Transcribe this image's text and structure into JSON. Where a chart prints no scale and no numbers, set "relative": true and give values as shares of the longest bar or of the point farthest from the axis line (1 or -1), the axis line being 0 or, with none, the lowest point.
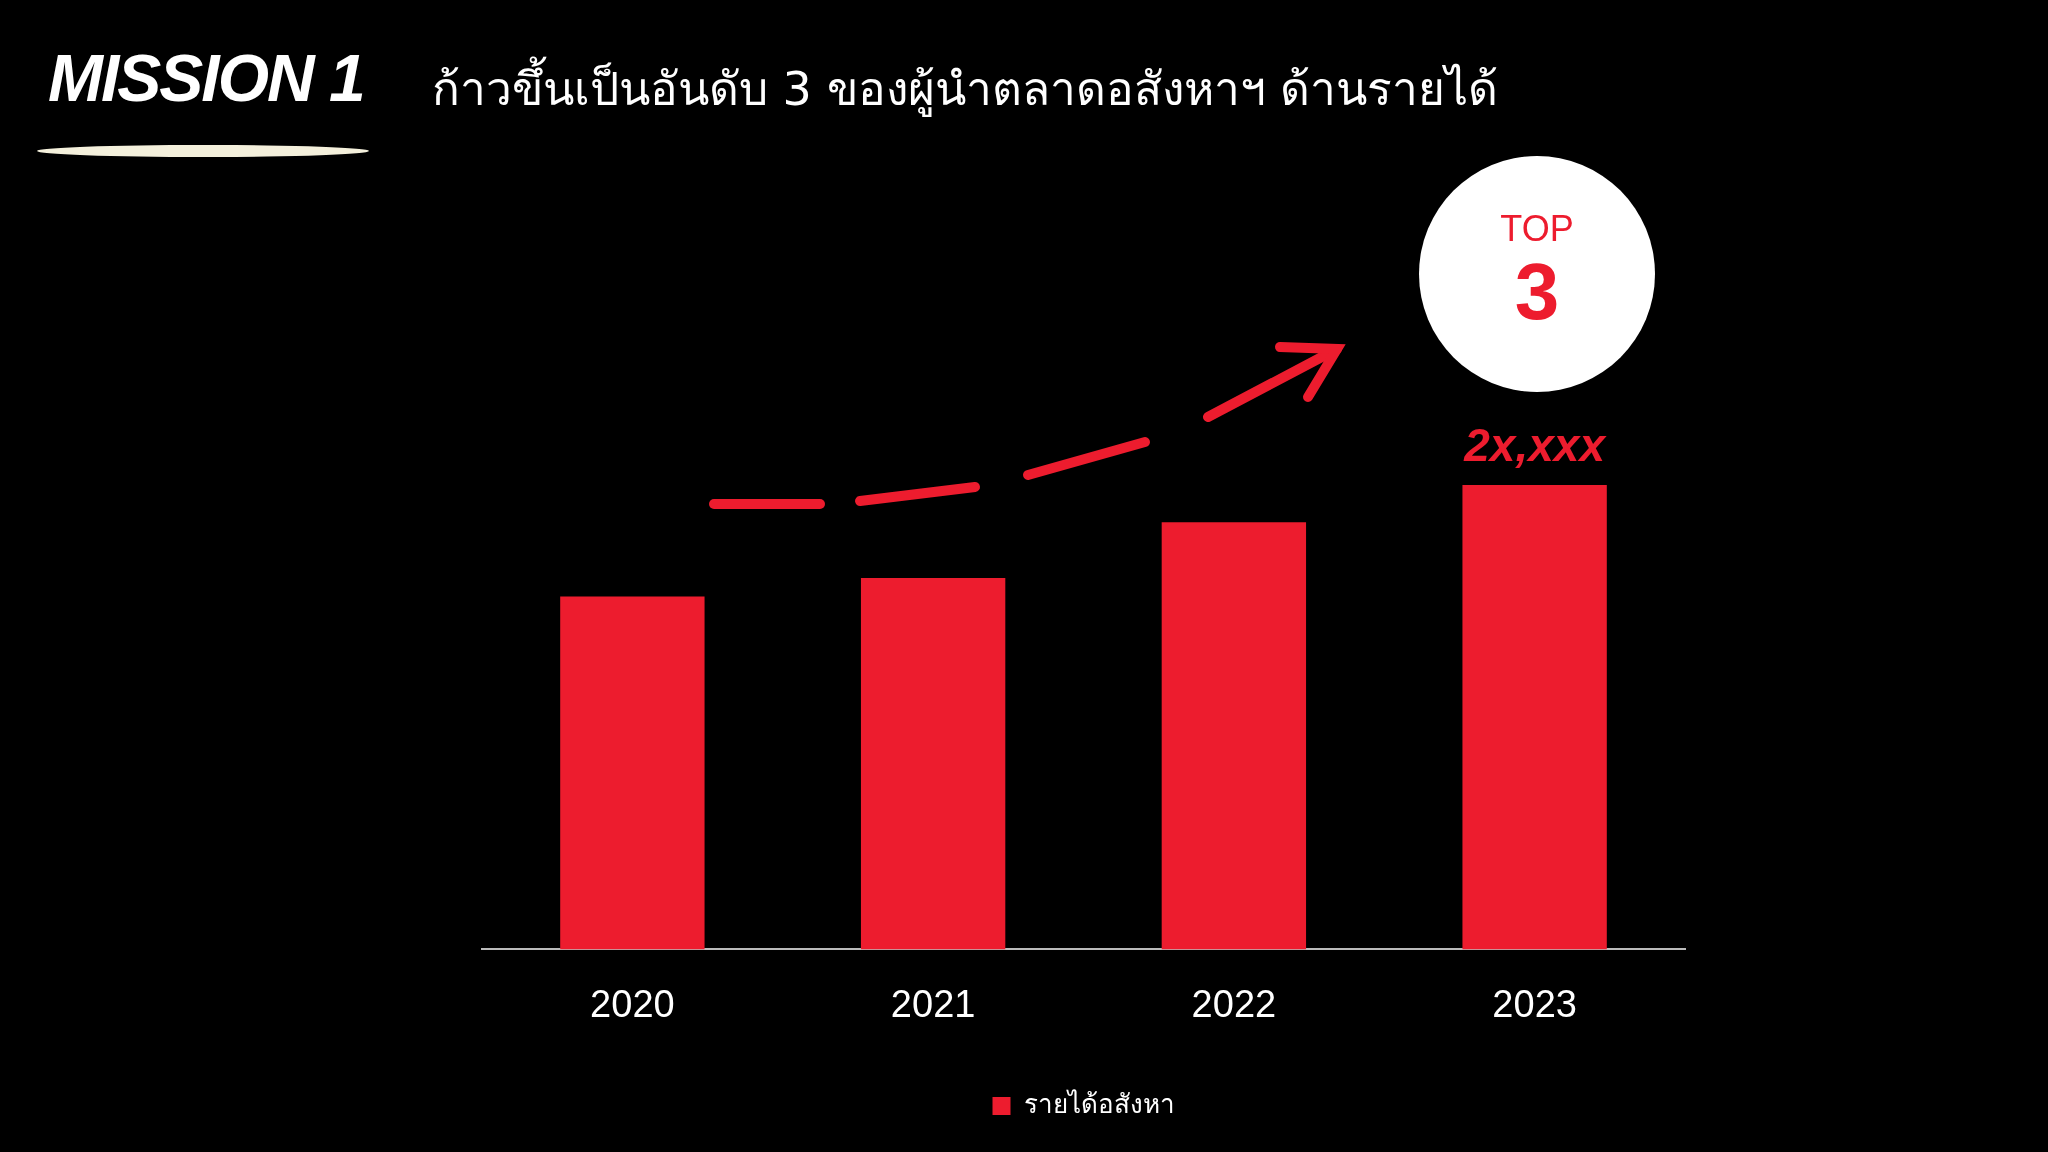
{
  "chart_data": {
    "type": "bar",
    "title": "MISSION 1",
    "subtitle": "ก้าวขึ้นเป็นอันดับ 3 ของผู้นำตลาดอสังหาฯ ด้านรายได้",
    "categories": [
      "2020",
      "2021",
      "2022",
      "2023"
    ],
    "series": [
      {
        "name": "รายได้อสังหา",
        "color": "#ed1c2e",
        "values": [
          0.76,
          0.8,
          0.92,
          1
        ]
      }
    ],
    "relative": true,
    "legend": "bottom",
    "annotations": [
      "TOP",
      "3",
      {
        "text": "2x,xxx",
        "x": "2023",
        "y": 1
      }
    ]
  }
}
